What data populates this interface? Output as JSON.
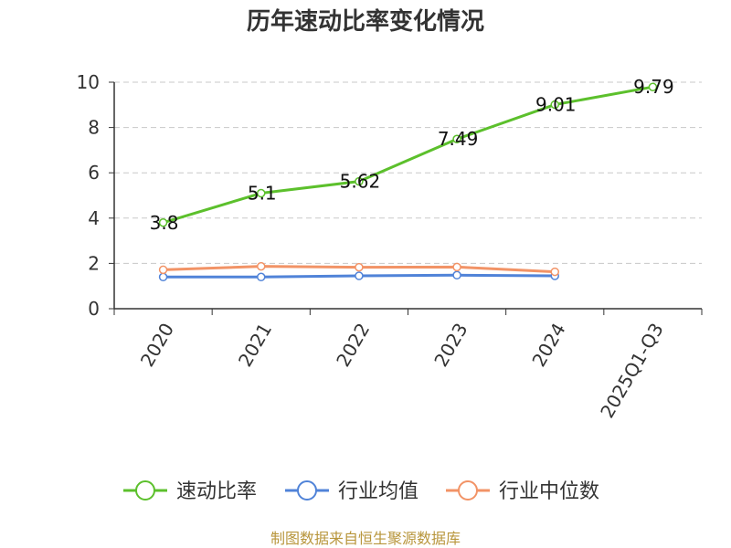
{
  "chart_data": {
    "type": "line",
    "title": "历年速动比率变化情况",
    "xlabel": "",
    "ylabel": "",
    "categories": [
      "2020",
      "2021",
      "2022",
      "2023",
      "2024",
      "2025Q1-Q3"
    ],
    "ylim": [
      0,
      10
    ],
    "yticks": [
      "0",
      "2",
      "4",
      "6",
      "8",
      "10"
    ],
    "grid": true,
    "legend_position": "bottom",
    "series": [
      {
        "name": "速动比率",
        "color": "#5cc02c",
        "values": [
          3.8,
          5.1,
          5.62,
          7.49,
          9.01,
          9.79
        ],
        "labels": [
          "3.8",
          "5.1",
          "5.62",
          "7.49",
          "9.01",
          "9.79"
        ]
      },
      {
        "name": "行业均值",
        "color": "#5083d8",
        "values": [
          1.4,
          1.4,
          1.45,
          1.48,
          1.45,
          null
        ]
      },
      {
        "name": "行业中位数",
        "color": "#f29366",
        "values": [
          1.72,
          1.87,
          1.83,
          1.84,
          1.63,
          null
        ]
      }
    ]
  },
  "source": "制图数据来自恒生聚源数据库"
}
